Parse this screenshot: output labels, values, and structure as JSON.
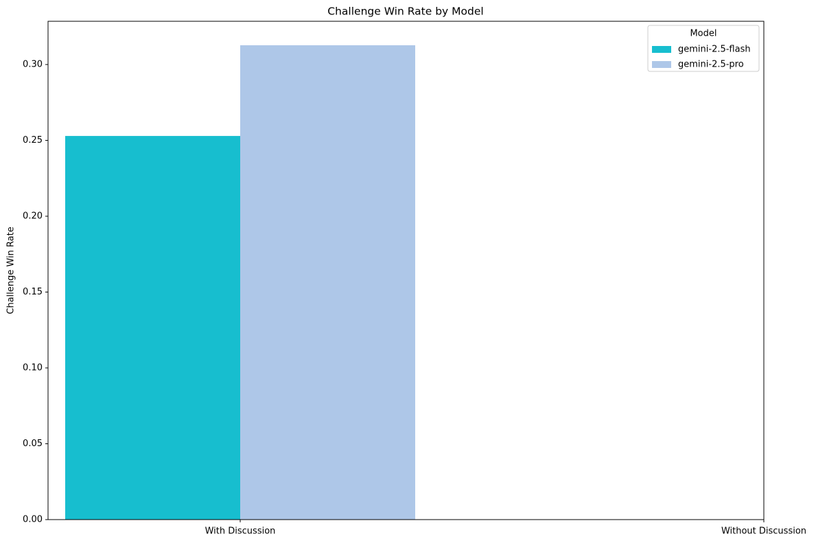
{
  "chart_data": {
    "type": "bar",
    "title": "Challenge Win Rate by Model",
    "y_label": "Challenge Win Rate",
    "categories": [
      "With Discussion",
      "Without Discussion"
    ],
    "series": [
      {
        "name": "gemini-2.5-flash",
        "color": "#17becf",
        "values": [
          0.2529,
          null
        ]
      },
      {
        "name": "gemini-2.5-pro",
        "color": "#aec7e8",
        "values": [
          0.3127,
          null
        ]
      }
    ],
    "ylim": [
      0,
      0.3285
    ],
    "yticks": [
      {
        "value": 0,
        "label": "0.00"
      },
      {
        "value": 0.05,
        "label": "0.05"
      },
      {
        "value": 0.1,
        "label": "0.10"
      },
      {
        "value": 0.15,
        "label": "0.15"
      },
      {
        "value": 0.2,
        "label": "0.20"
      },
      {
        "value": 0.25,
        "label": "0.25"
      },
      {
        "value": 0.3,
        "label": "0.30"
      }
    ],
    "legend_title": "Model",
    "legend_position": "upper-right"
  }
}
